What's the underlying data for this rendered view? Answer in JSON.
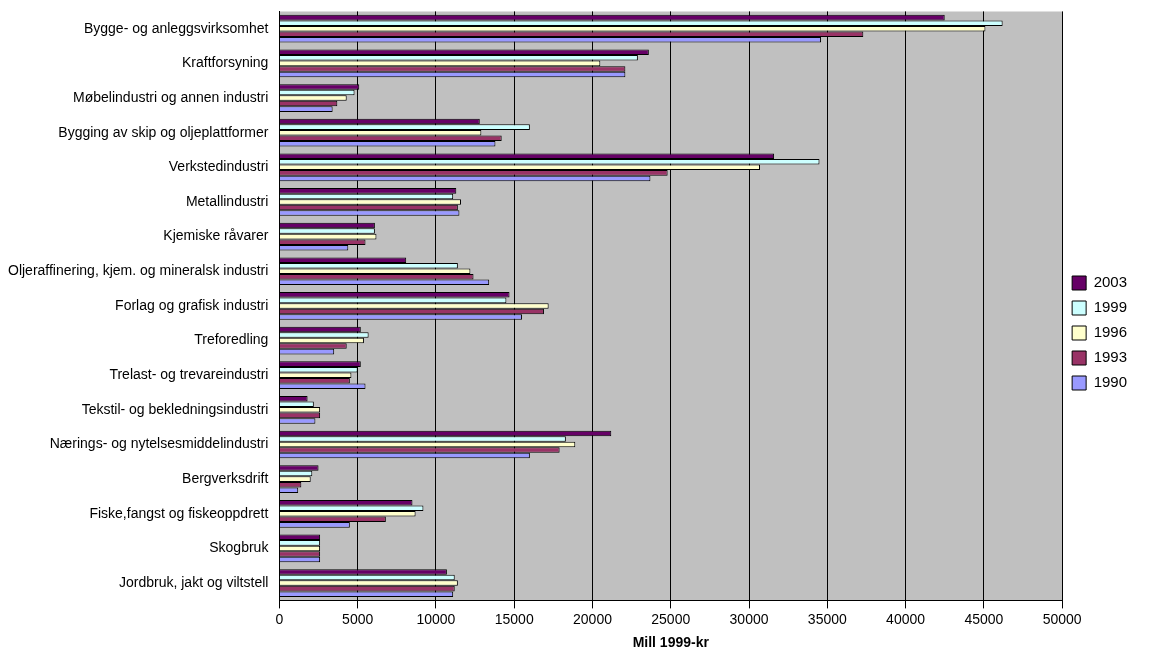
{
  "chart_data": {
    "type": "bar",
    "orientation": "horizontal",
    "xlabel": "Mill 1999-kr",
    "categories": [
      "Bygge- og anleggsvirksomhet",
      "Kraftforsyning",
      "Møbelindustri og annen industri",
      "Bygging av skip og oljeplattformer",
      "Verkstedindustri",
      "Metallindustri",
      "Kjemiske råvarer",
      "Oljeraffinering, kjem. og mineralsk industri",
      "Forlag og grafisk industri",
      "Treforedling",
      "Trelast- og trevareindustri",
      "Tekstil- og bekledningsindustri",
      "Nærings- og nytelsesmiddelindustri",
      "Bergverksdrift",
      "Fiske,fangst og fiskeoppdrett",
      "Skogbruk",
      "Jordbruk, jakt og viltstell"
    ],
    "series": [
      {
        "name": "2003",
        "color": "#660066",
        "values": [
          42500,
          23600,
          5100,
          12800,
          31600,
          11300,
          6100,
          8100,
          14700,
          5200,
          5200,
          1800,
          21200,
          2500,
          8500,
          2600,
          10700
        ]
      },
      {
        "name": "1999",
        "color": "#ccffff",
        "values": [
          46200,
          22900,
          4800,
          16000,
          34500,
          11100,
          6100,
          11400,
          14500,
          5700,
          5000,
          2200,
          18300,
          2100,
          9200,
          2600,
          11200
        ]
      },
      {
        "name": "1996",
        "color": "#ffffcc",
        "values": [
          45100,
          20500,
          4300,
          12900,
          30700,
          11600,
          6200,
          12200,
          17200,
          5400,
          4600,
          2600,
          18900,
          2000,
          8700,
          2600,
          11400
        ]
      },
      {
        "name": "1993",
        "color": "#993366",
        "values": [
          37300,
          22100,
          3700,
          14200,
          24800,
          11400,
          5500,
          12400,
          16900,
          4300,
          4500,
          2600,
          17900,
          1400,
          6800,
          2600,
          11200
        ]
      },
      {
        "name": "1990",
        "color": "#9999ff",
        "values": [
          34600,
          22100,
          3400,
          13800,
          23700,
          11500,
          4400,
          13400,
          15500,
          3500,
          5500,
          2300,
          16000,
          1200,
          4500,
          2600,
          11100
        ]
      }
    ],
    "xlim": [
      0,
      50000
    ],
    "xticks": [
      0,
      5000,
      10000,
      15000,
      20000,
      25000,
      30000,
      35000,
      40000,
      45000,
      50000
    ],
    "grid": "x",
    "legend": "right"
  }
}
